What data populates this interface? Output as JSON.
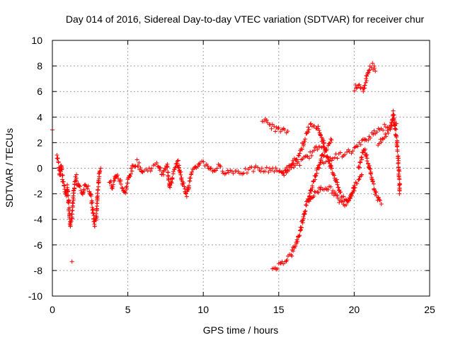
{
  "chart_data": {
    "type": "scatter",
    "title": "Day 014 of 2016, Sidereal Day-to-day VTEC variation (SDTVAR) for receiver chur",
    "xlabel": "GPS time / hours",
    "ylabel": "SDTVAR / TECUs",
    "xlim": [
      0,
      25
    ],
    "ylim": [
      -10,
      10
    ],
    "x_ticks": [
      "0",
      "5",
      "10",
      "15",
      "20",
      "25"
    ],
    "y_ticks": [
      "-10",
      "-8",
      "-6",
      "-4",
      "-2",
      "0",
      "2",
      "4",
      "6",
      "8",
      "10"
    ],
    "grid": true,
    "marker": "+",
    "color": "#ff0000",
    "series": [
      {
        "name": "SDTVAR",
        "segments": [
          [
            [
              0.0,
              3.0
            ]
          ],
          [
            [
              0.3,
              1.0
            ],
            [
              0.4,
              0.5
            ],
            [
              0.5,
              -0.5
            ],
            [
              0.6,
              0.2
            ],
            [
              0.7,
              -1.0
            ],
            [
              0.8,
              -1.5
            ],
            [
              0.9,
              -2.2
            ],
            [
              1.0,
              -1.5
            ],
            [
              1.1,
              -3.0
            ],
            [
              1.2,
              -4.5
            ],
            [
              1.3,
              -4.0
            ],
            [
              1.4,
              -2.0
            ],
            [
              1.5,
              -1.0
            ],
            [
              1.6,
              -0.5
            ]
          ],
          [
            [
              1.3,
              -7.3
            ]
          ],
          [
            [
              1.6,
              -1.0
            ],
            [
              1.8,
              -1.5
            ],
            [
              2.0,
              -2.0
            ],
            [
              2.2,
              -1.2
            ],
            [
              2.4,
              -1.5
            ],
            [
              2.6,
              -2.5
            ],
            [
              2.7,
              -3.5
            ],
            [
              2.8,
              -4.5
            ],
            [
              2.9,
              -4.0
            ],
            [
              3.0,
              -2.0
            ],
            [
              3.1,
              -0.5
            ],
            [
              3.2,
              0.0
            ]
          ],
          [
            [
              3.8,
              -1.0
            ],
            [
              4.0,
              -1.5
            ],
            [
              4.2,
              -0.5
            ],
            [
              4.5,
              -1.0
            ],
            [
              4.8,
              -2.0
            ],
            [
              5.0,
              -1.0
            ],
            [
              5.3,
              0.0
            ],
            [
              5.6,
              0.5
            ],
            [
              6.0,
              -0.3
            ],
            [
              6.5,
              0.0
            ],
            [
              7.0,
              0.3
            ],
            [
              7.3,
              -0.5
            ],
            [
              7.6,
              0.2
            ],
            [
              7.8,
              -1.5
            ],
            [
              8.0,
              -0.5
            ],
            [
              8.3,
              0.5
            ],
            [
              8.6,
              -1.0
            ],
            [
              8.9,
              -2.0
            ],
            [
              9.2,
              -0.5
            ],
            [
              9.5,
              0.0
            ],
            [
              9.8,
              0.5
            ],
            [
              10.2,
              0.3
            ],
            [
              10.6,
              -0.2
            ],
            [
              11.0,
              0.1
            ],
            [
              11.5,
              -0.3
            ],
            [
              12.0,
              -0.2
            ],
            [
              12.5,
              -0.3
            ],
            [
              13.0,
              -0.2
            ],
            [
              13.5,
              0.0
            ],
            [
              14.0,
              -0.2
            ],
            [
              14.5,
              0.0
            ],
            [
              15.0,
              -0.3
            ],
            [
              15.5,
              -0.1
            ],
            [
              16.0,
              0.2
            ],
            [
              16.5,
              0.5
            ],
            [
              17.0,
              1.0
            ],
            [
              17.5,
              1.5
            ],
            [
              18.0,
              2.0
            ]
          ],
          [
            [
              13.9,
              3.8
            ],
            [
              14.2,
              3.6
            ],
            [
              14.5,
              3.3
            ],
            [
              14.8,
              3.1
            ],
            [
              15.0,
              3.0
            ],
            [
              15.3,
              2.9
            ],
            [
              15.6,
              2.9
            ]
          ],
          [
            [
              14.6,
              -7.9
            ],
            [
              15.0,
              -7.6
            ],
            [
              15.4,
              -7.2
            ],
            [
              15.8,
              -6.8
            ],
            [
              16.1,
              -6.0
            ],
            [
              16.4,
              -5.0
            ],
            [
              16.7,
              -3.5
            ],
            [
              17.0,
              -2.2
            ],
            [
              17.3,
              -1.0
            ],
            [
              17.6,
              0.0
            ],
            [
              17.9,
              1.0
            ],
            [
              18.2,
              1.6
            ],
            [
              18.5,
              2.2
            ]
          ],
          [
            [
              15.2,
              -0.5
            ],
            [
              15.6,
              -0.2
            ],
            [
              16.0,
              0.5
            ],
            [
              16.4,
              1.2
            ],
            [
              16.8,
              2.5
            ],
            [
              17.0,
              3.2
            ],
            [
              17.3,
              3.5
            ],
            [
              17.6,
              3.2
            ],
            [
              17.9,
              2.2
            ],
            [
              18.2,
              1.0
            ],
            [
              18.5,
              0.0
            ],
            [
              18.8,
              -1.0
            ],
            [
              19.1,
              -2.0
            ],
            [
              19.4,
              -2.5
            ],
            [
              19.7,
              -2.3
            ],
            [
              20.0,
              -1.5
            ]
          ],
          [
            [
              17.0,
              -2.5
            ],
            [
              17.4,
              -2.0
            ],
            [
              17.8,
              -1.5
            ],
            [
              18.2,
              -1.5
            ],
            [
              18.6,
              -1.8
            ],
            [
              19.0,
              -2.5
            ],
            [
              19.3,
              -2.8
            ],
            [
              19.6,
              -2.5
            ],
            [
              19.9,
              -1.8
            ],
            [
              20.2,
              -1.0
            ],
            [
              20.5,
              -0.5
            ]
          ],
          [
            [
              20.0,
              6.2
            ],
            [
              20.2,
              6.5
            ],
            [
              20.4,
              6.3
            ],
            [
              20.6,
              6.0
            ],
            [
              20.8,
              7.0
            ],
            [
              21.0,
              7.8
            ],
            [
              21.2,
              8.0
            ],
            [
              21.4,
              7.6
            ]
          ],
          [
            [
              20.3,
              0.0
            ],
            [
              20.5,
              1.0
            ],
            [
              20.7,
              1.5
            ],
            [
              20.9,
              0.5
            ],
            [
              21.1,
              -0.5
            ],
            [
              21.3,
              -1.5
            ],
            [
              21.6,
              -2.5
            ],
            [
              21.8,
              -2.8
            ]
          ],
          [
            [
              17.8,
              0.5
            ],
            [
              18.5,
              0.8
            ],
            [
              19.0,
              1.0
            ],
            [
              19.5,
              1.2
            ],
            [
              20.0,
              1.5
            ],
            [
              20.5,
              2.0
            ],
            [
              21.0,
              2.5
            ],
            [
              21.5,
              3.0
            ],
            [
              22.0,
              3.2
            ],
            [
              22.5,
              3.3
            ],
            [
              22.8,
              3.5
            ]
          ],
          [
            [
              21.6,
              2.0
            ],
            [
              22.0,
              2.5
            ],
            [
              22.4,
              3.0
            ],
            [
              22.6,
              4.3
            ],
            [
              22.8,
              2.5
            ],
            [
              22.9,
              1.0
            ],
            [
              23.0,
              -1.0
            ],
            [
              23.0,
              -2.0
            ]
          ]
        ]
      }
    ]
  }
}
